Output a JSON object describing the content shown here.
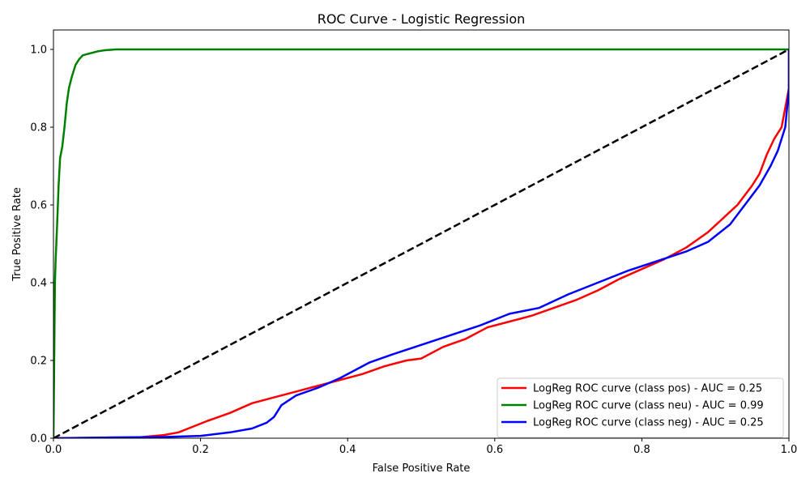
{
  "chart_data": {
    "type": "line",
    "title": "ROC Curve - Logistic Regression",
    "xlabel": "False Positive Rate",
    "ylabel": "True Positive Rate",
    "xlim": [
      0.0,
      1.0
    ],
    "ylim": [
      0.0,
      1.05
    ],
    "xticks": [
      "0.0",
      "0.2",
      "0.4",
      "0.6",
      "0.8",
      "1.0"
    ],
    "yticks": [
      "0.0",
      "0.2",
      "0.4",
      "0.6",
      "0.8",
      "1.0"
    ],
    "grid": false,
    "legend_position": "lower-right",
    "series": [
      {
        "name": "LogReg ROC curve (class pos) - AUC = 0.25",
        "color": "#ff0000",
        "x": [
          0,
          0.1,
          0.12,
          0.15,
          0.17,
          0.19,
          0.21,
          0.24,
          0.27,
          0.3,
          0.33,
          0.36,
          0.39,
          0.42,
          0.45,
          0.48,
          0.5,
          0.53,
          0.56,
          0.59,
          0.62,
          0.65,
          0.68,
          0.71,
          0.74,
          0.77,
          0.8,
          0.83,
          0.86,
          0.89,
          0.91,
          0.93,
          0.95,
          0.96,
          0.97,
          0.98,
          0.99,
          0.995,
          1.0,
          1.0
        ],
        "y": [
          0,
          0.0,
          0.003,
          0.008,
          0.015,
          0.03,
          0.045,
          0.065,
          0.09,
          0.105,
          0.12,
          0.135,
          0.15,
          0.165,
          0.185,
          0.2,
          0.205,
          0.235,
          0.255,
          0.285,
          0.3,
          0.315,
          0.335,
          0.355,
          0.38,
          0.41,
          0.435,
          0.46,
          0.49,
          0.53,
          0.565,
          0.6,
          0.65,
          0.68,
          0.73,
          0.77,
          0.8,
          0.85,
          0.9,
          1.0
        ]
      },
      {
        "name": "LogReg ROC curve (class neu) - AUC = 0.99",
        "color": "#008000",
        "x": [
          0,
          0.001,
          0.002,
          0.003,
          0.005,
          0.007,
          0.009,
          0.012,
          0.015,
          0.018,
          0.021,
          0.025,
          0.03,
          0.035,
          0.04,
          0.05,
          0.06,
          0.07,
          0.085,
          0.8,
          1.0
        ],
        "y": [
          0,
          0.2,
          0.4,
          0.46,
          0.55,
          0.65,
          0.72,
          0.75,
          0.8,
          0.86,
          0.9,
          0.93,
          0.96,
          0.975,
          0.985,
          0.99,
          0.995,
          0.998,
          1.0,
          1.0,
          1.0
        ]
      },
      {
        "name": "LogReg ROC curve (class neg) - AUC = 0.25",
        "color": "#0000ff",
        "x": [
          0,
          0.08,
          0.15,
          0.2,
          0.24,
          0.27,
          0.29,
          0.3,
          0.31,
          0.33,
          0.36,
          0.39,
          0.41,
          0.43,
          0.46,
          0.5,
          0.54,
          0.58,
          0.62,
          0.66,
          0.7,
          0.74,
          0.78,
          0.82,
          0.86,
          0.89,
          0.92,
          0.94,
          0.96,
          0.975,
          0.985,
          0.995,
          1.0,
          1.0
        ],
        "y": [
          0,
          0.002,
          0.003,
          0.006,
          0.015,
          0.025,
          0.04,
          0.055,
          0.085,
          0.11,
          0.13,
          0.155,
          0.175,
          0.195,
          0.215,
          0.24,
          0.265,
          0.29,
          0.32,
          0.335,
          0.37,
          0.4,
          0.43,
          0.455,
          0.48,
          0.505,
          0.55,
          0.6,
          0.65,
          0.7,
          0.74,
          0.8,
          0.9,
          1.0
        ]
      },
      {
        "name": "",
        "color": "#000000",
        "dashed": true,
        "x": [
          0,
          1
        ],
        "y": [
          0,
          1
        ]
      }
    ]
  }
}
